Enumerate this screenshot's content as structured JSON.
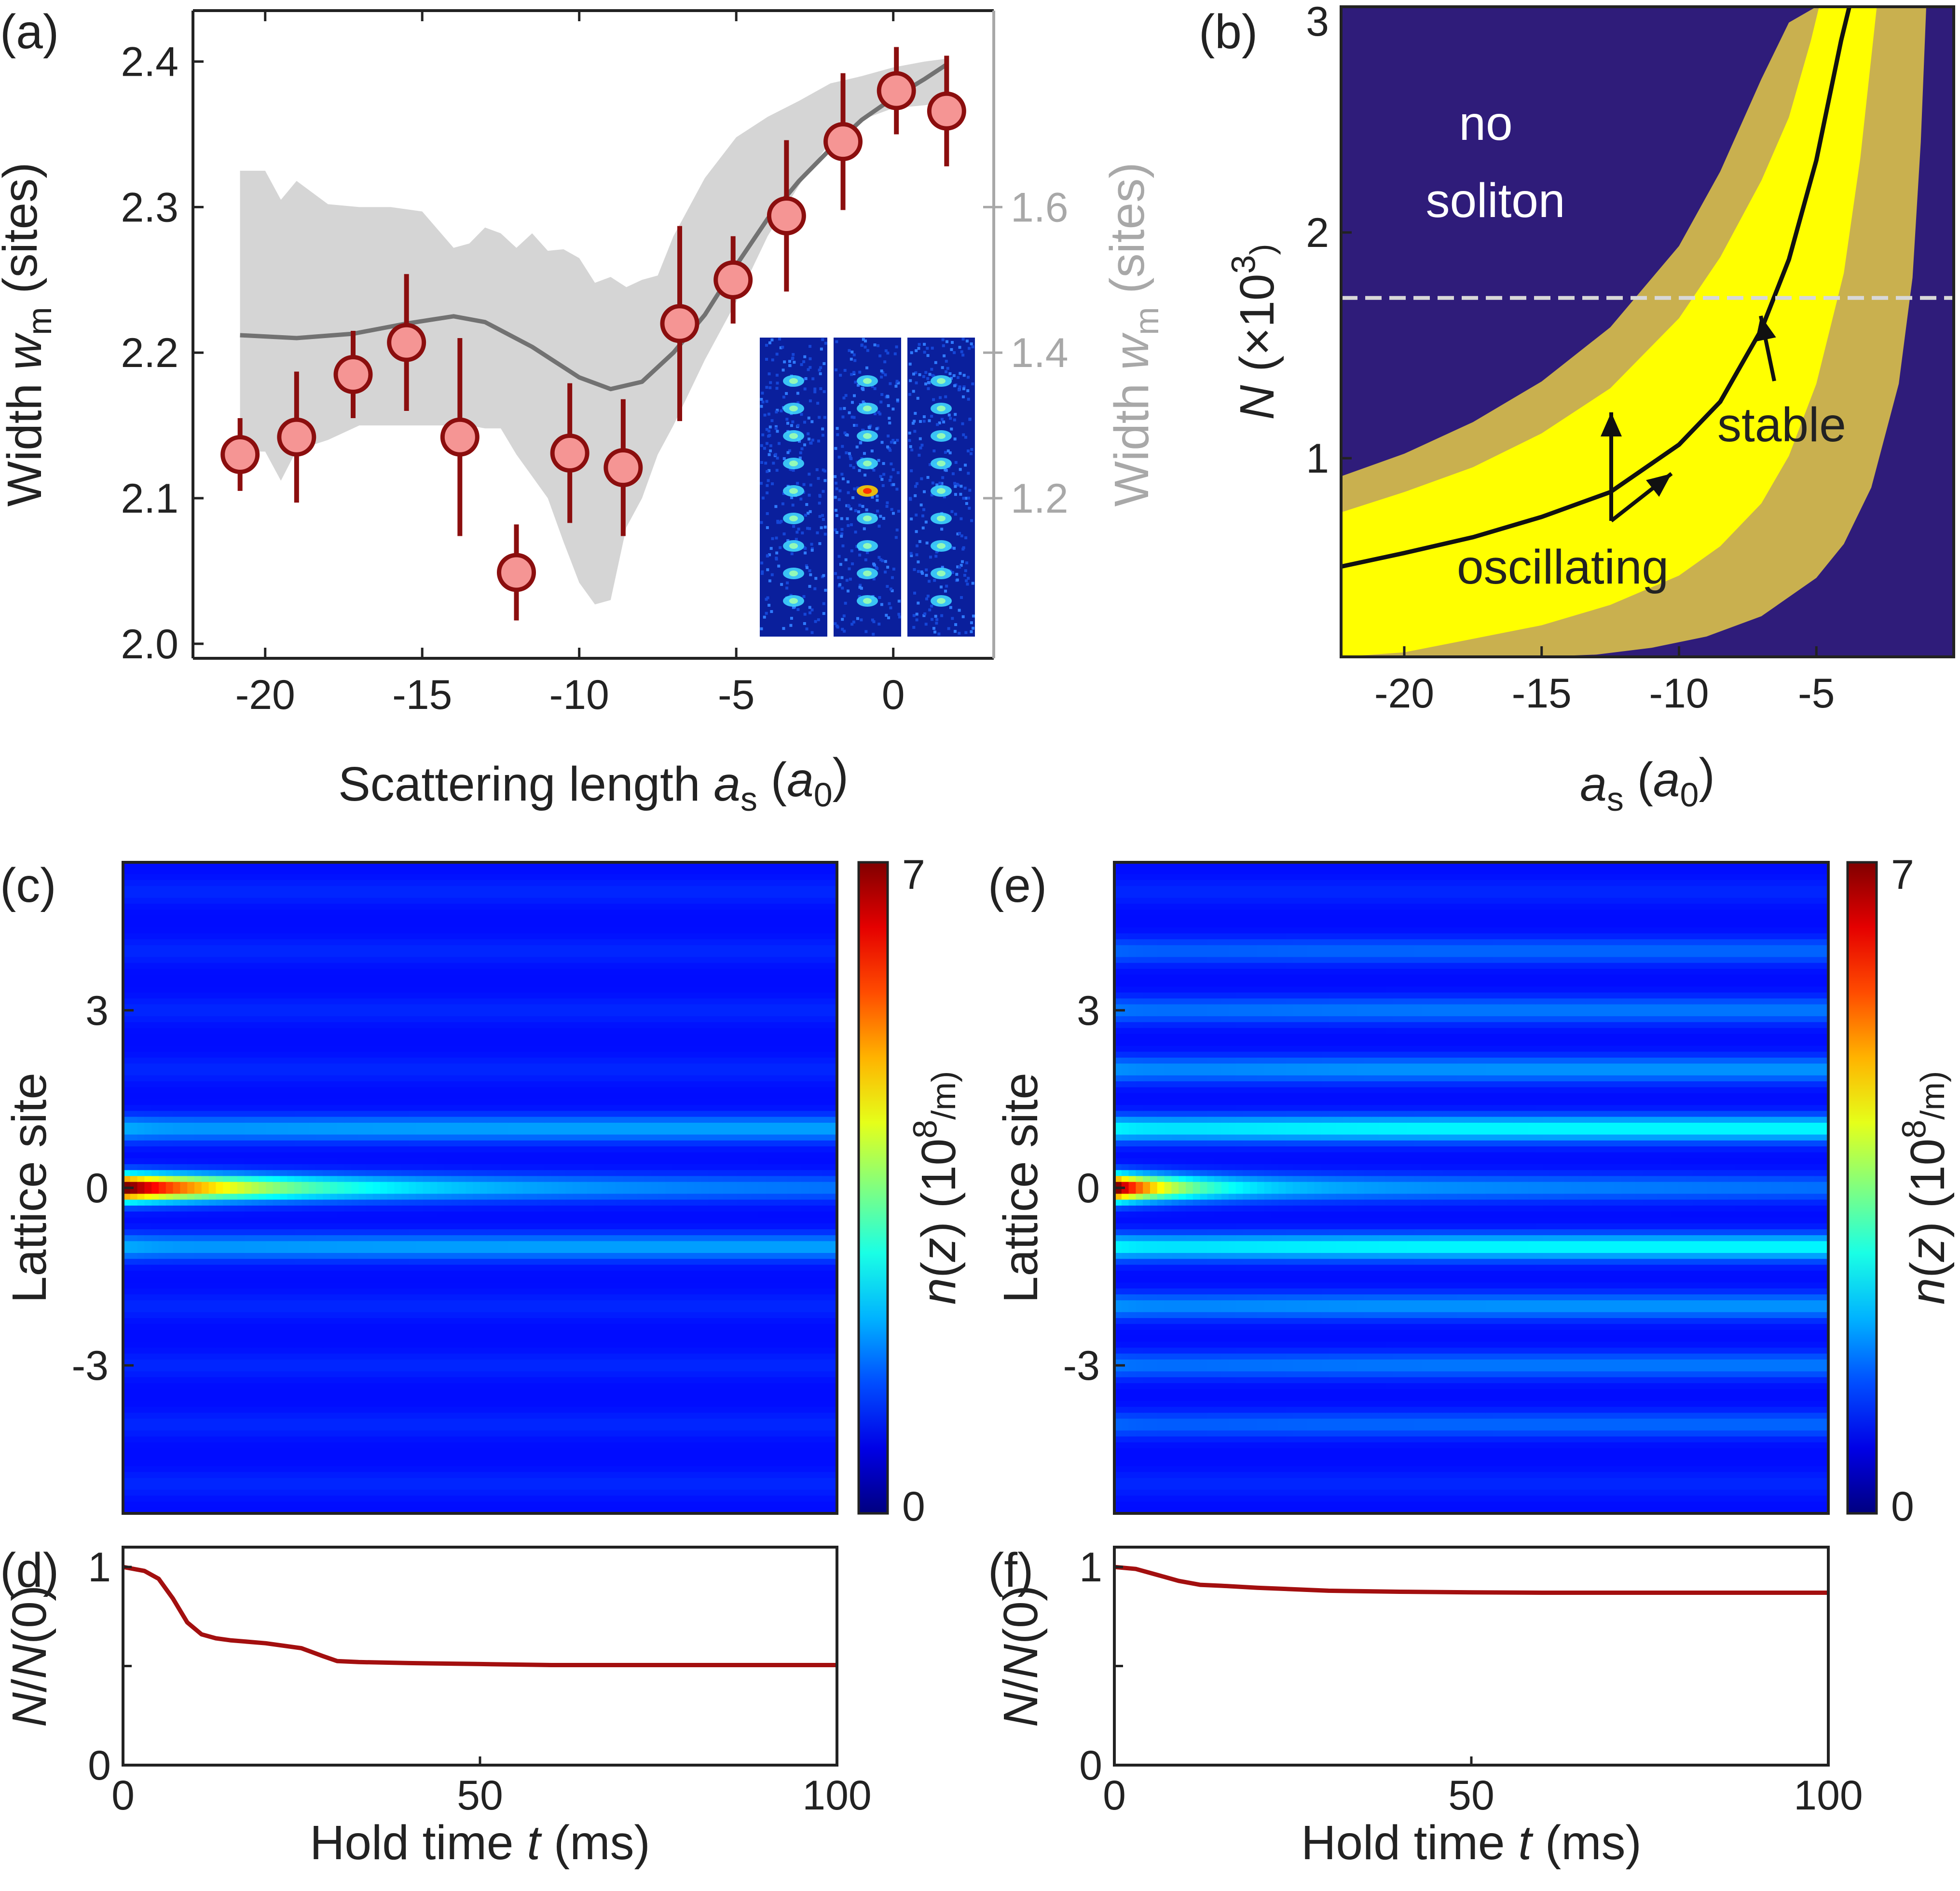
{
  "colors": {
    "marker_fill": "#f59594",
    "marker_edge": "#8b0e0e",
    "model_line": "#727272",
    "band": "#d5d5d5",
    "right_axis": "#a8a8a8",
    "no_soliton": "#2f1c7a",
    "soliton_outer": "#c9b04f",
    "soliton_inner": "#ffff00",
    "dashed_line": "#d8d8d8",
    "decay_line": "#a30f0f"
  },
  "chart_data": [
    {
      "panel": "(a)",
      "type": "scatter",
      "xlabel_parts": [
        "Scattering length ",
        "a",
        "s",
        " (",
        "a",
        "0",
        ")"
      ],
      "ylabel_parts": [
        "Width ",
        "w",
        "m",
        " (sites)"
      ],
      "y2label_parts": [
        "Width ",
        "w",
        "m",
        " (sites)"
      ],
      "xlim": [
        -22.3,
        3.2
      ],
      "ylim": [
        1.99,
        2.435
      ],
      "xticks": [
        -20,
        -15,
        -10,
        -5,
        0
      ],
      "xtick_labels": [
        "-20",
        "-15",
        "-10",
        "-5",
        "0"
      ],
      "yticks": [
        2.0,
        2.1,
        2.2,
        2.3,
        2.4
      ],
      "ytick_labels": [
        "2.0",
        "2.1",
        "2.2",
        "2.3",
        "2.4"
      ],
      "y2ticks": [
        1.2,
        1.4,
        1.6
      ],
      "y2tick_labels": [
        "1.2",
        "1.4",
        "1.6"
      ],
      "y2_mapping": {
        "left_ref": [
          2.1,
          2.2
        ],
        "right_ref": [
          1.2,
          1.4
        ]
      },
      "points": [
        {
          "x": -20.8,
          "y": 2.13,
          "err": 0.025
        },
        {
          "x": -19.0,
          "y": 2.142,
          "err": 0.045
        },
        {
          "x": -17.2,
          "y": 2.185,
          "err": 0.03
        },
        {
          "x": -15.5,
          "y": 2.207,
          "err": 0.047
        },
        {
          "x": -13.8,
          "y": 2.142,
          "err": 0.068
        },
        {
          "x": -12.0,
          "y": 2.049,
          "err": 0.033
        },
        {
          "x": -10.3,
          "y": 2.131,
          "err": 0.048
        },
        {
          "x": -8.6,
          "y": 2.121,
          "err": 0.047
        },
        {
          "x": -6.8,
          "y": 2.22,
          "err": 0.067
        },
        {
          "x": -5.1,
          "y": 2.25,
          "err": 0.03
        },
        {
          "x": -3.4,
          "y": 2.294,
          "err": 0.052
        },
        {
          "x": -1.6,
          "y": 2.345,
          "err": 0.047
        },
        {
          "x": 0.1,
          "y": 2.38,
          "err": 0.03
        },
        {
          "x": 1.7,
          "y": 2.366,
          "err": 0.038
        }
      ],
      "model_line": {
        "x": [
          -20.8,
          -19,
          -17.2,
          -15.5,
          -14,
          -13,
          -11.5,
          -10,
          -9,
          -8,
          -7,
          -6,
          -5,
          -4,
          -3,
          -2,
          -1,
          0,
          1,
          1.7
        ],
        "y": [
          2.212,
          2.21,
          2.213,
          2.22,
          2.225,
          2.221,
          2.204,
          2.183,
          2.175,
          2.18,
          2.2,
          2.226,
          2.26,
          2.292,
          2.318,
          2.34,
          2.36,
          2.375,
          2.388,
          2.398
        ]
      },
      "band": {
        "x": [
          -20.8,
          -20,
          -19.5,
          -19,
          -18,
          -17,
          -16,
          -15,
          -14,
          -13.5,
          -13,
          -12.5,
          -12,
          -11.5,
          -11,
          -10.5,
          -10,
          -9.5,
          -9,
          -8.5,
          -8,
          -7.5,
          -7,
          -6,
          -5,
          -4,
          -3,
          -2,
          -1,
          0,
          1,
          1.7
        ],
        "upper": [
          2.325,
          2.325,
          2.305,
          2.318,
          2.302,
          2.3,
          2.3,
          2.297,
          2.272,
          2.275,
          2.286,
          2.282,
          2.272,
          2.282,
          2.27,
          2.271,
          2.265,
          2.248,
          2.252,
          2.245,
          2.25,
          2.253,
          2.28,
          2.32,
          2.348,
          2.362,
          2.373,
          2.385,
          2.39,
          2.396,
          2.4,
          2.402
        ],
        "lower": [
          2.132,
          2.132,
          2.112,
          2.133,
          2.14,
          2.15,
          2.15,
          2.15,
          2.15,
          2.15,
          2.148,
          2.148,
          2.13,
          2.115,
          2.1,
          2.07,
          2.042,
          2.027,
          2.03,
          2.08,
          2.1,
          2.13,
          2.15,
          2.195,
          2.235,
          2.28,
          2.315,
          2.345,
          2.36,
          2.368,
          2.37,
          2.372
        ]
      }
    },
    {
      "panel": "(b)",
      "type": "heatmap",
      "xlabel_parts": [
        "a",
        "s",
        " (",
        "a",
        "0",
        ")"
      ],
      "ylabel_parts": [
        "N",
        " (×10",
        "3",
        ")"
      ],
      "xlim": [
        -22.3,
        0
      ],
      "ylim": [
        0.12,
        3.0
      ],
      "xticks": [
        -20,
        -15,
        -10,
        -5
      ],
      "xtick_labels": [
        "-20",
        "-15",
        "-10",
        "-5"
      ],
      "yticks": [
        1,
        2,
        3
      ],
      "ytick_labels": [
        "1",
        "2",
        "3"
      ],
      "boundaries": {
        "outer_left": {
          "x": [
            -22.3,
            -20,
            -17.5,
            -15,
            -12.5,
            -10,
            -8.5,
            -7,
            -6,
            -5
          ],
          "y": [
            0.92,
            1.02,
            1.16,
            1.34,
            1.58,
            1.94,
            2.27,
            2.68,
            2.93,
            3.0
          ]
        },
        "inner_left": {
          "x": [
            -22.3,
            -20,
            -17.5,
            -15,
            -12.5,
            -10,
            -8.5,
            -7,
            -6,
            -5.2,
            -4.9
          ],
          "y": [
            0.76,
            0.85,
            0.96,
            1.11,
            1.31,
            1.62,
            1.89,
            2.23,
            2.51,
            2.85,
            3.0
          ]
        },
        "stable": {
          "x": [
            -22.3,
            -20,
            -17.5,
            -15,
            -12.5,
            -10,
            -8.5,
            -7,
            -6,
            -5,
            -4.1,
            -3.8
          ],
          "y": [
            0.52,
            0.58,
            0.65,
            0.74,
            0.85,
            1.06,
            1.25,
            1.57,
            1.88,
            2.32,
            2.85,
            3.0
          ]
        },
        "inner_right": {
          "x": [
            -22.3,
            -20,
            -17.5,
            -15,
            -12.5,
            -10,
            -8.5,
            -7,
            -6,
            -5,
            -4,
            -3.4,
            -2.8
          ],
          "y": [
            0.12,
            0.14,
            0.2,
            0.26,
            0.35,
            0.48,
            0.61,
            0.8,
            1.01,
            1.33,
            1.82,
            2.33,
            3.0
          ]
        },
        "outer_right": {
          "x": [
            -15.2,
            -13,
            -11,
            -9,
            -7,
            -5,
            -4,
            -3,
            -2,
            -1.5,
            -1.2,
            -1.0
          ],
          "y": [
            0.12,
            0.13,
            0.16,
            0.21,
            0.3,
            0.47,
            0.62,
            0.87,
            1.33,
            1.8,
            2.4,
            3.0
          ]
        }
      },
      "dashed_y": 1.71,
      "annotations": {
        "region": [
          "no",
          "soliton"
        ],
        "stable": "stable",
        "oscillating": "oscillating"
      }
    },
    {
      "panel": "(c)",
      "type": "heatmap",
      "ylabel": "Lattice site",
      "colorbar_label_parts": [
        "n",
        "(",
        "z",
        ") (10",
        "8",
        "/m)"
      ],
      "colorbar_ticks": [
        "0",
        "7"
      ],
      "zrange": [
        0,
        7
      ],
      "xlim": [
        0,
        100
      ],
      "ylim": [
        -5.5,
        5.5
      ],
      "yticks": [
        -3,
        0,
        3
      ],
      "ytick_labels": [
        "-3",
        "0",
        "3"
      ],
      "dynamics": {
        "central_decay_ms": 18,
        "side_sites": [
          1,
          -1
        ],
        "side_peak": 1.8,
        "side_tail": 1.0
      }
    },
    {
      "panel": "(d)",
      "type": "line",
      "xlabel_parts": [
        "Hold time ",
        "t",
        " (ms)"
      ],
      "ylabel_parts": [
        "N",
        "/",
        "N",
        "(0)"
      ],
      "xlim": [
        0,
        100
      ],
      "ylim": [
        0,
        1.1
      ],
      "xticks": [
        0,
        50,
        100
      ],
      "xtick_labels": [
        "0",
        "50",
        "100"
      ],
      "yticks": [
        0,
        1
      ],
      "ytick_labels": [
        "0",
        "1"
      ],
      "x": [
        0,
        3,
        5,
        7,
        9,
        11,
        13,
        15,
        20,
        25,
        28,
        30,
        33,
        40,
        50,
        60,
        70,
        80,
        90,
        100
      ],
      "y": [
        1.0,
        0.98,
        0.94,
        0.84,
        0.72,
        0.66,
        0.64,
        0.63,
        0.615,
        0.59,
        0.55,
        0.525,
        0.52,
        0.515,
        0.51,
        0.505,
        0.505,
        0.505,
        0.505,
        0.505
      ]
    },
    {
      "panel": "(e)",
      "type": "heatmap",
      "ylabel": "Lattice site",
      "colorbar_label_parts": [
        "n",
        "(",
        "z",
        ") (10",
        "8",
        "/m)"
      ],
      "colorbar_ticks": [
        "0",
        "7"
      ],
      "zrange": [
        0,
        7
      ],
      "xlim": [
        0,
        100
      ],
      "ylim": [
        -5.5,
        5.5
      ],
      "yticks": [
        -3,
        0,
        3
      ],
      "ytick_labels": [
        "-3",
        "0",
        "3"
      ],
      "dynamics": {
        "central_decay_ms": 8,
        "side_sites": [
          1,
          -1,
          2,
          -2,
          3,
          -3,
          4,
          -4
        ],
        "side_peak": 2.6,
        "side_tail": 1.6
      }
    },
    {
      "panel": "(f)",
      "type": "line",
      "xlabel_parts": [
        "Hold time ",
        "t",
        " (ms)"
      ],
      "ylabel_parts": [
        "N",
        "/",
        "N",
        "(0)"
      ],
      "xlim": [
        0,
        100
      ],
      "ylim": [
        0,
        1.1
      ],
      "xticks": [
        0,
        50,
        100
      ],
      "xtick_labels": [
        "0",
        "50",
        "100"
      ],
      "yticks": [
        0,
        1
      ],
      "ytick_labels": [
        "0",
        "1"
      ],
      "x": [
        0,
        3,
        6,
        9,
        12,
        15,
        20,
        30,
        40,
        50,
        60,
        70,
        80,
        90,
        100
      ],
      "y": [
        1.0,
        0.99,
        0.96,
        0.93,
        0.91,
        0.905,
        0.895,
        0.88,
        0.875,
        0.872,
        0.87,
        0.87,
        0.87,
        0.87,
        0.87
      ]
    }
  ]
}
